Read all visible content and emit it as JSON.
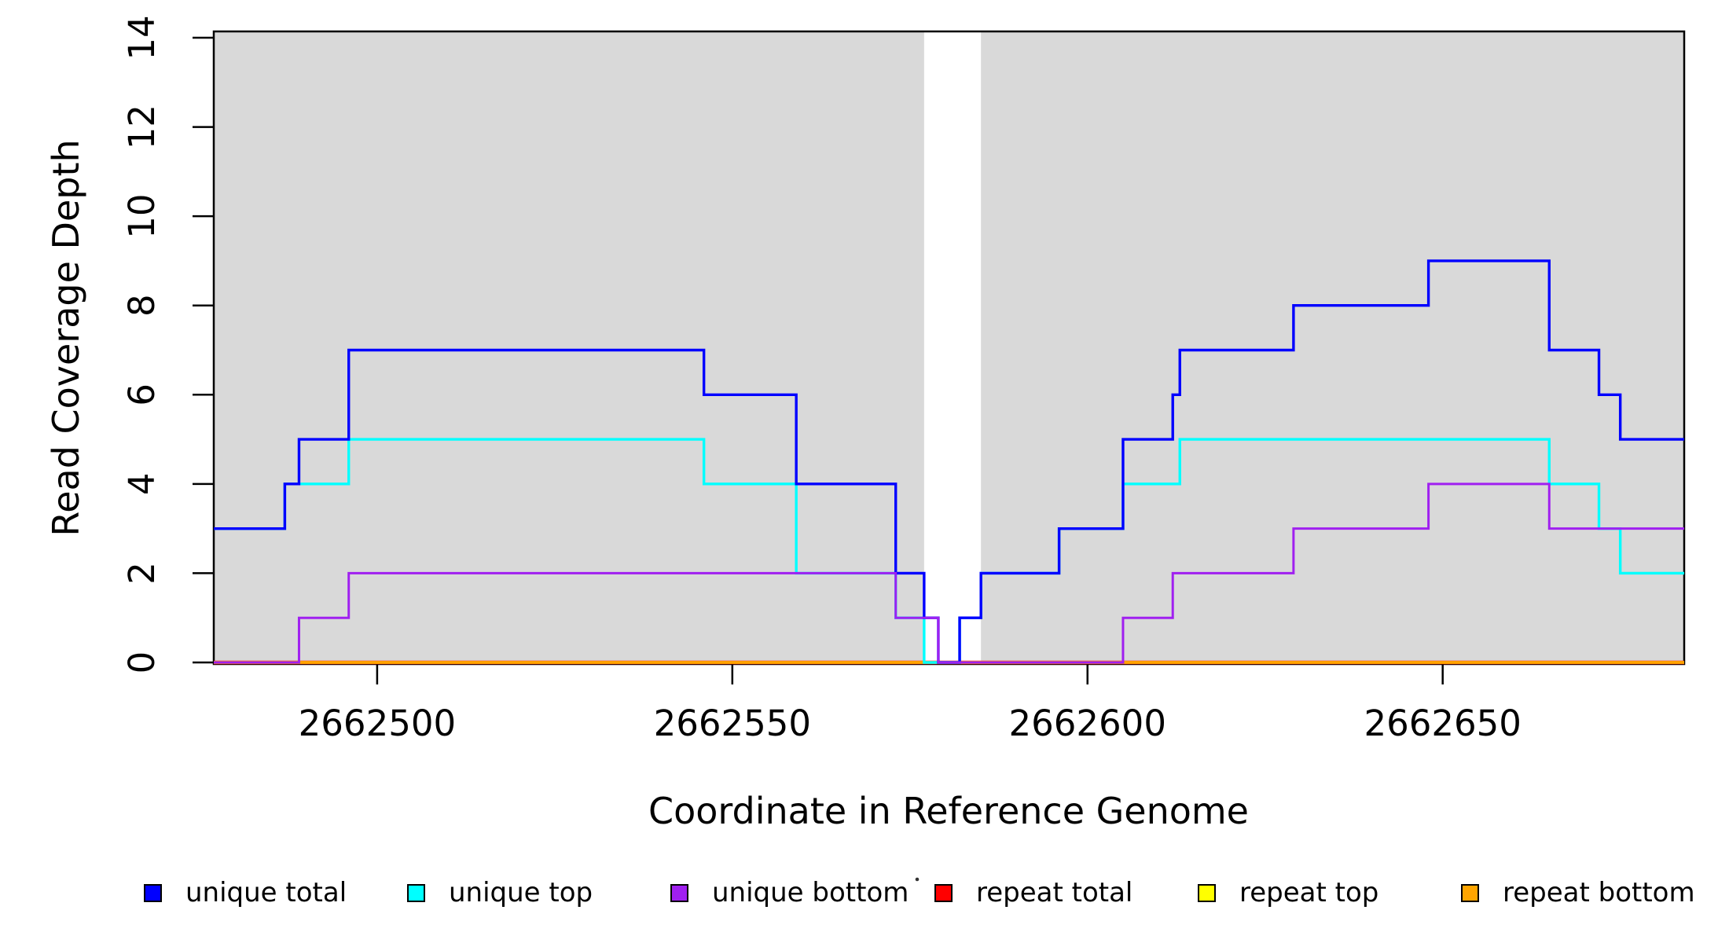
{
  "figure": {
    "background_color": "#FFFFFF",
    "plot_band_color": "#D9D9D9",
    "frame_color": "#000000",
    "x_axis_title": "Coordinate in Reference Genome",
    "y_axis_title": "Read Coverage Depth"
  },
  "chart_data": {
    "type": "line",
    "step": "after",
    "title": "",
    "xlabel": "Coordinate in Reference Genome",
    "ylabel": "Read Coverage Depth",
    "xlim": [
      2662477,
      2662684
    ],
    "ylim": [
      0,
      14
    ],
    "x_ticks": [
      2662500,
      2662550,
      2662600,
      2662650
    ],
    "y_ticks": [
      0,
      2,
      4,
      6,
      8,
      10,
      12,
      14
    ],
    "grid": false,
    "legend_position": "bottom",
    "shaded_regions": [
      {
        "name": "gray-band-left",
        "x0": 2662477,
        "x1": 2662577
      },
      {
        "name": "gray-band-right",
        "x0": 2662585,
        "x1": 2662684
      }
    ],
    "series": [
      {
        "name": "repeat total",
        "color": "#FF0000",
        "line_width": 4.6,
        "points": [
          [
            2662477,
            0
          ],
          [
            2662684,
            0
          ]
        ]
      },
      {
        "name": "repeat top",
        "color": "#FFFF00",
        "line_width": 3.4,
        "points": [
          [
            2662477,
            0
          ],
          [
            2662684,
            0
          ]
        ]
      },
      {
        "name": "repeat bottom",
        "color": "#FFA500",
        "line_width": 3.2,
        "points": [
          [
            2662477,
            0
          ],
          [
            2662684,
            0
          ]
        ]
      },
      {
        "name": "unique top",
        "color": "#00FFFF",
        "line_width": 3.4,
        "points": [
          [
            2662477,
            3
          ],
          [
            2662487,
            4
          ],
          [
            2662496,
            5
          ],
          [
            2662546,
            4
          ],
          [
            2662559,
            2
          ],
          [
            2662573,
            1
          ],
          [
            2662577,
            0
          ],
          [
            2662582,
            1
          ],
          [
            2662585,
            2
          ],
          [
            2662596,
            3
          ],
          [
            2662605,
            4
          ],
          [
            2662613,
            5
          ],
          [
            2662665,
            4
          ],
          [
            2662672,
            3
          ],
          [
            2662675,
            2
          ],
          [
            2662684,
            2
          ]
        ]
      },
      {
        "name": "unique total",
        "color": "#0000FF",
        "line_width": 3.4,
        "points": [
          [
            2662477,
            3
          ],
          [
            2662487,
            4
          ],
          [
            2662489,
            5
          ],
          [
            2662496,
            7
          ],
          [
            2662546,
            6
          ],
          [
            2662559,
            4
          ],
          [
            2662573,
            2
          ],
          [
            2662577,
            1
          ],
          [
            2662579,
            0
          ],
          [
            2662582,
            1
          ],
          [
            2662585,
            2
          ],
          [
            2662596,
            3
          ],
          [
            2662605,
            5
          ],
          [
            2662612,
            6
          ],
          [
            2662613,
            7
          ],
          [
            2662629,
            8
          ],
          [
            2662648,
            9
          ],
          [
            2662665,
            7
          ],
          [
            2662672,
            6
          ],
          [
            2662675,
            5
          ],
          [
            2662684,
            5
          ]
        ]
      },
      {
        "name": "unique bottom",
        "color": "#A020F0",
        "line_width": 3.0,
        "points": [
          [
            2662477,
            0
          ],
          [
            2662489,
            1
          ],
          [
            2662496,
            2
          ],
          [
            2662573,
            1
          ],
          [
            2662579,
            0
          ],
          [
            2662605,
            1
          ],
          [
            2662612,
            2
          ],
          [
            2662629,
            3
          ],
          [
            2662648,
            4
          ],
          [
            2662665,
            3
          ],
          [
            2662684,
            3
          ]
        ]
      }
    ],
    "legend_entries": [
      {
        "label": "unique total",
        "color": "#0000FF"
      },
      {
        "label": "unique top",
        "color": "#00FFFF"
      },
      {
        "label": "unique bottom",
        "color": "#A020F0"
      },
      {
        "label": "repeat total",
        "color": "#FF0000"
      },
      {
        "label": "repeat top",
        "color": "#FFFF00"
      },
      {
        "label": "repeat bottom",
        "color": "#FFA500"
      }
    ],
    "stray_dot": {
      "x": 1167,
      "y": 1119
    }
  }
}
